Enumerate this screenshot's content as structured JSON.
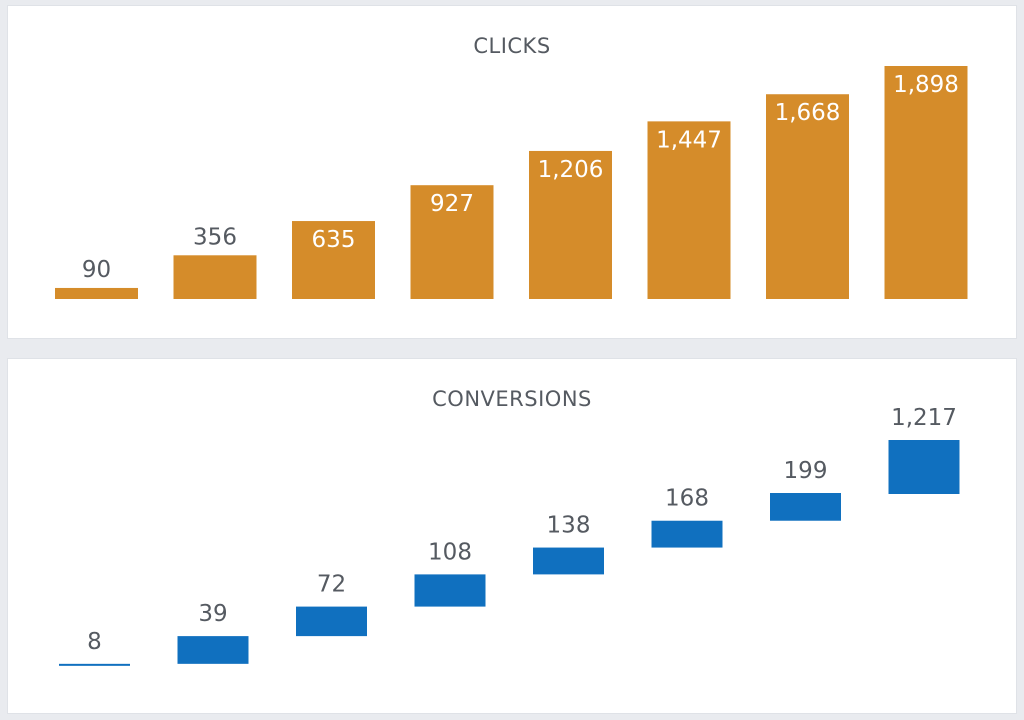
{
  "chart_data": [
    {
      "type": "bar",
      "title": "CLICKS",
      "values": [
        90,
        356,
        635,
        927,
        1206,
        1447,
        1668,
        1898
      ],
      "labels": [
        "90",
        "356",
        "635",
        "927",
        "1,206",
        "1,447",
        "1,668",
        "1,898"
      ],
      "ylim": [
        0,
        1898
      ],
      "color": "#d58c2a",
      "grid": false,
      "legend": "none"
    },
    {
      "type": "waterfall",
      "title": "CONVERSIONS",
      "values": [
        8,
        39,
        72,
        108,
        138,
        168,
        199,
        1217
      ],
      "labels": [
        "8",
        "39",
        "72",
        "108",
        "138",
        "168",
        "199",
        "1,217"
      ],
      "color": "#1070bf",
      "grid": false,
      "legend": "none"
    }
  ]
}
